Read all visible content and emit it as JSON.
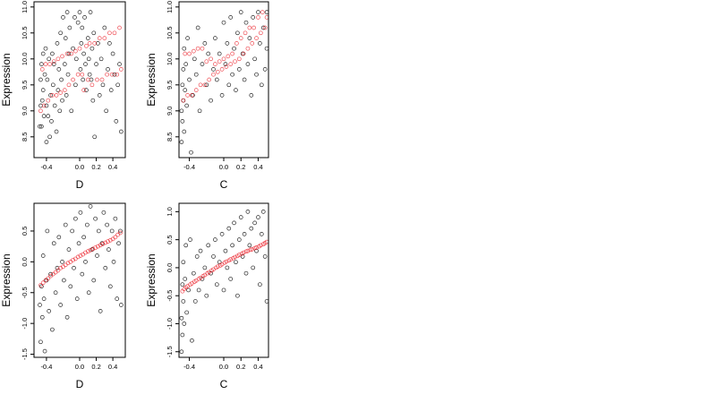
{
  "chart_data": [
    {
      "type": "scatter",
      "xlabel": "D",
      "ylabel": "Expression",
      "xlim": [
        -0.55,
        0.55
      ],
      "ylim": [
        8.1,
        11.1
      ],
      "x_ticks": [
        -0.4,
        0.0,
        0.2,
        0.4
      ],
      "x_tick_labels": [
        "-0.4",
        "0.0",
        "0.2",
        "0.4"
      ],
      "y_ticks": [
        8.5,
        9.0,
        9.5,
        10.0,
        10.5,
        11.0
      ],
      "y_tick_labels": [
        "8.5",
        "9.0",
        "9.5",
        "10.0",
        "10.5",
        "11.0"
      ],
      "grid": false,
      "series": [
        {
          "color": "#000000",
          "x": [
            -0.48,
            -0.47,
            -0.47,
            -0.46,
            -0.46,
            -0.45,
            -0.44,
            -0.44,
            -0.43,
            -0.42,
            -0.41,
            -0.4,
            -0.4,
            -0.39,
            -0.38,
            -0.37,
            -0.36,
            -0.35,
            -0.34,
            -0.33,
            -0.32,
            -0.31,
            -0.3,
            -0.28,
            -0.27,
            -0.26,
            -0.25,
            -0.24,
            -0.23,
            -0.22,
            -0.21,
            -0.2,
            -0.18,
            -0.17,
            -0.16,
            -0.15,
            -0.14,
            -0.13,
            -0.12,
            -0.1,
            -0.08,
            -0.06,
            -0.05,
            -0.04,
            -0.02,
            0.0,
            0.01,
            0.02,
            0.03,
            0.04,
            0.05,
            0.06,
            0.07,
            0.08,
            0.1,
            0.11,
            0.12,
            0.13,
            0.14,
            0.15,
            0.16,
            0.17,
            0.18,
            0.2,
            0.22,
            0.24,
            0.26,
            0.28,
            0.3,
            0.32,
            0.34,
            0.36,
            0.38,
            0.4,
            0.42,
            0.44,
            0.46,
            0.48,
            0.5
          ],
          "y": [
            8.7,
            9.1,
            9.6,
            8.7,
            9.9,
            9.2,
            10.1,
            9.4,
            8.9,
            9.7,
            10.2,
            9.1,
            8.4,
            9.6,
            8.9,
            10.0,
            8.5,
            9.3,
            8.8,
            10.1,
            9.5,
            9.9,
            9.1,
            8.6,
            10.3,
            9.4,
            9.8,
            9.0,
            10.5,
            9.6,
            9.2,
            10.8,
            9.9,
            10.4,
            9.3,
            10.9,
            9.7,
            10.1,
            10.6,
            9.0,
            10.2,
            10.8,
            9.5,
            10.0,
            10.7,
            10.9,
            9.8,
            10.3,
            10.6,
            9.6,
            10.1,
            10.8,
            9.9,
            9.4,
            10.4,
            10.0,
            9.7,
            10.9,
            9.6,
            10.2,
            9.2,
            10.5,
            8.5,
            9.9,
            10.3,
            9.3,
            10.0,
            9.5,
            10.6,
            9.0,
            9.8,
            10.3,
            9.4,
            10.1,
            9.7,
            8.8,
            9.5,
            9.9,
            8.6
          ]
        },
        {
          "color": "#e8000b",
          "x": [
            -0.47,
            -0.45,
            -0.43,
            -0.41,
            -0.38,
            -0.36,
            -0.33,
            -0.31,
            -0.28,
            -0.26,
            -0.23,
            -0.21,
            -0.18,
            -0.15,
            -0.13,
            -0.1,
            -0.08,
            -0.05,
            -0.02,
            0.0,
            0.03,
            0.05,
            0.08,
            0.1,
            0.12,
            0.15,
            0.18,
            0.21,
            0.24,
            0.27,
            0.3,
            0.33,
            0.36,
            0.39,
            0.42,
            0.45,
            0.48,
            0.5
          ],
          "y": [
            9.0,
            9.8,
            9.1,
            9.9,
            9.2,
            9.9,
            9.3,
            9.95,
            9.3,
            10.0,
            9.35,
            10.05,
            9.4,
            10.1,
            9.5,
            10.1,
            9.6,
            10.15,
            9.7,
            10.2,
            9.7,
            9.4,
            10.25,
            9.6,
            10.3,
            9.5,
            10.3,
            9.6,
            10.4,
            9.6,
            10.4,
            9.7,
            10.5,
            9.7,
            10.5,
            9.7,
            10.6,
            9.8
          ]
        }
      ]
    },
    {
      "type": "scatter",
      "xlabel": "C",
      "ylabel": "Expression",
      "xlim": [
        -0.52,
        0.52
      ],
      "ylim": [
        8.1,
        11.1
      ],
      "x_ticks": [
        -0.4,
        0.0,
        0.2,
        0.4
      ],
      "x_tick_labels": [
        "-0.4",
        "0.0",
        "0.2",
        "0.4"
      ],
      "y_ticks": [
        8.5,
        9.0,
        9.5,
        10.0,
        10.5,
        11.0
      ],
      "y_tick_labels": [
        "8.5",
        "9.0",
        "9.5",
        "10.0",
        "10.5",
        "11.0"
      ],
      "grid": false,
      "series": [
        {
          "color": "#000000",
          "x": [
            -0.49,
            -0.49,
            -0.48,
            -0.48,
            -0.47,
            -0.47,
            -0.46,
            -0.46,
            -0.45,
            -0.44,
            -0.43,
            -0.42,
            -0.4,
            -0.38,
            -0.36,
            -0.34,
            -0.32,
            -0.3,
            -0.28,
            -0.25,
            -0.22,
            -0.2,
            -0.18,
            -0.15,
            -0.12,
            -0.1,
            -0.08,
            -0.05,
            -0.02,
            0.0,
            0.02,
            0.04,
            0.06,
            0.08,
            0.1,
            0.12,
            0.14,
            0.16,
            0.18,
            0.2,
            0.22,
            0.24,
            0.26,
            0.28,
            0.3,
            0.32,
            0.34,
            0.36,
            0.38,
            0.4,
            0.42,
            0.44,
            0.46,
            0.48,
            0.5,
            0.5
          ],
          "y": [
            8.4,
            9.0,
            9.5,
            8.8,
            9.8,
            9.2,
            10.2,
            8.6,
            9.4,
            9.9,
            9.1,
            10.4,
            9.6,
            8.2,
            9.3,
            10.0,
            9.7,
            10.6,
            9.0,
            9.9,
            10.3,
            9.5,
            10.1,
            9.2,
            9.8,
            10.4,
            9.6,
            10.1,
            9.3,
            10.7,
            9.9,
            10.3,
            9.5,
            10.8,
            9.7,
            10.2,
            9.4,
            10.5,
            9.8,
            10.9,
            10.1,
            9.6,
            10.7,
            9.9,
            10.4,
            9.3,
            10.8,
            10.0,
            9.7,
            10.9,
            10.3,
            9.5,
            10.6,
            9.8,
            10.9,
            10.2
          ]
        },
        {
          "color": "#e8000b",
          "x": [
            -0.47,
            -0.45,
            -0.42,
            -0.4,
            -0.37,
            -0.35,
            -0.32,
            -0.3,
            -0.27,
            -0.25,
            -0.22,
            -0.2,
            -0.17,
            -0.15,
            -0.12,
            -0.1,
            -0.07,
            -0.05,
            -0.02,
            0.0,
            0.03,
            0.05,
            0.08,
            0.1,
            0.13,
            0.15,
            0.18,
            0.2,
            0.23,
            0.25,
            0.28,
            0.3,
            0.33,
            0.35,
            0.38,
            0.4,
            0.43,
            0.45,
            0.48,
            0.5
          ],
          "y": [
            9.2,
            10.1,
            9.3,
            10.1,
            9.3,
            10.15,
            9.4,
            10.2,
            9.5,
            10.2,
            9.5,
            9.95,
            9.6,
            10.0,
            9.7,
            9.9,
            9.75,
            9.95,
            9.8,
            10.0,
            9.85,
            10.05,
            9.9,
            10.1,
            9.95,
            10.3,
            10.0,
            10.4,
            10.1,
            10.5,
            10.2,
            10.6,
            10.3,
            10.6,
            10.4,
            10.8,
            10.5,
            10.9,
            10.6,
            10.8
          ]
        }
      ]
    },
    {
      "type": "scatter",
      "xlabel": "D",
      "ylabel": "Expression",
      "xlim": [
        -0.55,
        0.55
      ],
      "ylim": [
        -1.55,
        0.95
      ],
      "x_ticks": [
        -0.4,
        0.0,
        0.2,
        0.4
      ],
      "x_tick_labels": [
        "-0.4",
        "0.0",
        "0.2",
        "0.4"
      ],
      "y_ticks": [
        -1.5,
        -1.0,
        -0.5,
        0.0,
        0.5
      ],
      "y_tick_labels": [
        "-1.5",
        "-1.0",
        "-0.5",
        "0.0",
        "0.5"
      ],
      "grid": false,
      "series": [
        {
          "color": "#000000",
          "x": [
            -0.48,
            -0.47,
            -0.46,
            -0.45,
            -0.44,
            -0.43,
            -0.42,
            -0.4,
            -0.39,
            -0.37,
            -0.35,
            -0.33,
            -0.31,
            -0.29,
            -0.27,
            -0.25,
            -0.23,
            -0.21,
            -0.19,
            -0.17,
            -0.15,
            -0.13,
            -0.11,
            -0.09,
            -0.07,
            -0.05,
            -0.03,
            -0.01,
            0.01,
            0.03,
            0.05,
            0.07,
            0.09,
            0.11,
            0.13,
            0.15,
            0.17,
            0.19,
            0.21,
            0.23,
            0.25,
            0.27,
            0.29,
            0.31,
            0.33,
            0.35,
            0.37,
            0.39,
            0.41,
            0.43,
            0.45,
            0.47,
            0.49,
            0.5
          ],
          "y": [
            -0.7,
            -1.3,
            -0.4,
            -0.9,
            0.1,
            -0.6,
            -1.45,
            -0.3,
            0.5,
            -0.8,
            -0.2,
            -1.1,
            0.3,
            -0.5,
            -0.1,
            0.4,
            -0.7,
            0.0,
            -0.3,
            0.6,
            -0.9,
            0.2,
            -0.4,
            0.5,
            -0.1,
            0.7,
            -0.6,
            0.3,
            0.8,
            -0.2,
            0.4,
            0.0,
            0.6,
            -0.5,
            0.9,
            0.2,
            -0.3,
            0.7,
            0.1,
            0.5,
            -0.8,
            0.3,
            0.8,
            -0.1,
            0.6,
            0.2,
            -0.4,
            0.5,
            0.0,
            0.7,
            -0.6,
            0.3,
            0.5,
            -0.7
          ]
        },
        {
          "color": "#e8000b",
          "x": [
            -0.47,
            -0.44,
            -0.41,
            -0.38,
            -0.35,
            -0.32,
            -0.29,
            -0.26,
            -0.23,
            -0.2,
            -0.17,
            -0.14,
            -0.11,
            -0.08,
            -0.05,
            -0.02,
            0.01,
            0.04,
            0.07,
            0.1,
            0.13,
            0.16,
            0.19,
            0.22,
            0.25,
            0.28,
            0.31,
            0.34,
            0.37,
            0.4,
            0.43,
            0.46,
            0.49
          ],
          "y": [
            -0.38,
            -0.34,
            -0.3,
            -0.27,
            -0.23,
            -0.2,
            -0.17,
            -0.14,
            -0.1,
            -0.08,
            -0.05,
            -0.02,
            0.0,
            0.03,
            0.05,
            0.08,
            0.1,
            0.12,
            0.15,
            0.17,
            0.19,
            0.21,
            0.23,
            0.25,
            0.27,
            0.29,
            0.31,
            0.33,
            0.35,
            0.37,
            0.4,
            0.44,
            0.47
          ]
        }
      ]
    },
    {
      "type": "scatter",
      "xlabel": "C",
      "ylabel": "Expression",
      "xlim": [
        -0.52,
        0.52
      ],
      "ylim": [
        -1.6,
        1.15
      ],
      "x_ticks": [
        -0.4,
        0.0,
        0.2,
        0.4
      ],
      "x_tick_labels": [
        "-0.4",
        "0.0",
        "0.2",
        "0.4"
      ],
      "y_ticks": [
        -1.5,
        -1.0,
        -0.5,
        0.0,
        0.5,
        1.0
      ],
      "y_tick_labels": [
        "-1.5",
        "-1.0",
        "-0.5",
        "0.0",
        "0.5",
        "1.0"
      ],
      "grid": false,
      "series": [
        {
          "color": "#000000",
          "x": [
            -0.49,
            -0.49,
            -0.48,
            -0.48,
            -0.47,
            -0.47,
            -0.46,
            -0.45,
            -0.44,
            -0.43,
            -0.41,
            -0.39,
            -0.37,
            -0.35,
            -0.33,
            -0.31,
            -0.29,
            -0.27,
            -0.25,
            -0.22,
            -0.2,
            -0.18,
            -0.15,
            -0.12,
            -0.1,
            -0.08,
            -0.05,
            -0.02,
            0.0,
            0.02,
            0.04,
            0.06,
            0.08,
            0.1,
            0.12,
            0.14,
            0.16,
            0.18,
            0.2,
            0.22,
            0.24,
            0.26,
            0.28,
            0.3,
            0.32,
            0.34,
            0.36,
            0.38,
            0.4,
            0.42,
            0.44,
            0.46,
            0.48,
            0.5
          ],
          "y": [
            -1.5,
            -0.9,
            -0.3,
            -1.2,
            0.1,
            -0.6,
            -1.0,
            -0.2,
            0.4,
            -0.8,
            -0.4,
            0.5,
            -1.3,
            -0.1,
            -0.6,
            0.2,
            -0.4,
            0.3,
            -0.2,
            0.0,
            -0.5,
            0.4,
            -0.1,
            0.2,
            0.5,
            -0.3,
            0.1,
            0.6,
            -0.4,
            0.3,
            0.0,
            0.7,
            -0.2,
            0.4,
            0.8,
            0.1,
            -0.5,
            0.5,
            0.9,
            0.2,
            0.6,
            -0.1,
            1.0,
            0.4,
            0.7,
            0.0,
            0.8,
            0.3,
            0.9,
            -0.3,
            0.6,
            1.0,
            0.2,
            -0.6
          ]
        },
        {
          "color": "#e8000b",
          "x": [
            -0.48,
            -0.46,
            -0.44,
            -0.42,
            -0.39,
            -0.37,
            -0.34,
            -0.32,
            -0.29,
            -0.27,
            -0.24,
            -0.22,
            -0.19,
            -0.17,
            -0.14,
            -0.12,
            -0.09,
            -0.07,
            -0.04,
            -0.02,
            0.01,
            0.03,
            0.06,
            0.08,
            0.11,
            0.13,
            0.16,
            0.18,
            0.21,
            0.23,
            0.26,
            0.28,
            0.31,
            0.33,
            0.36,
            0.38,
            0.41,
            0.43,
            0.46,
            0.48,
            0.5
          ],
          "y": [
            -0.42,
            -0.38,
            -0.35,
            -0.33,
            -0.3,
            -0.28,
            -0.25,
            -0.23,
            -0.2,
            -0.18,
            -0.15,
            -0.13,
            -0.1,
            -0.08,
            -0.05,
            -0.03,
            0.0,
            0.02,
            0.04,
            0.06,
            0.09,
            0.11,
            0.13,
            0.15,
            0.17,
            0.19,
            0.21,
            0.23,
            0.25,
            0.27,
            0.29,
            0.3,
            0.32,
            0.33,
            0.35,
            0.36,
            0.38,
            0.4,
            0.42,
            0.44,
            0.46
          ]
        }
      ]
    }
  ]
}
